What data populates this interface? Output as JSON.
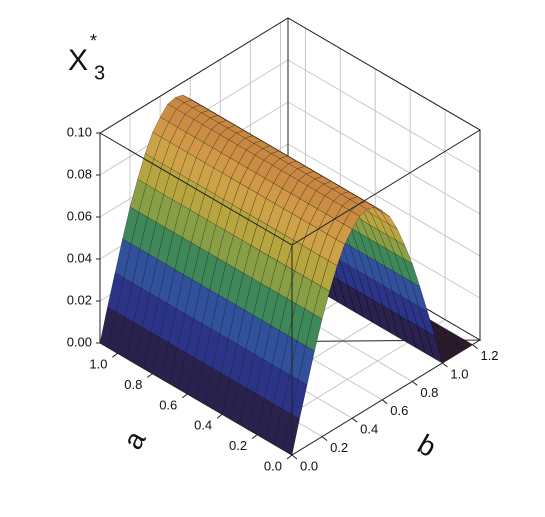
{
  "chart_data": {
    "type": "surface",
    "z_label": {
      "base": "X",
      "sup": "*",
      "sub": "3"
    },
    "a_label": "a",
    "b_label": "b",
    "alim": [
      0,
      1.1
    ],
    "blim": [
      0,
      1.25
    ],
    "zlim": [
      0,
      0.1
    ],
    "aticks": [
      {
        "value": 0,
        "label": "0.0"
      },
      {
        "value": 0.2,
        "label": "0.2"
      },
      {
        "value": 0.4,
        "label": "0.4"
      },
      {
        "value": 0.6,
        "label": "0.6"
      },
      {
        "value": 0.8,
        "label": "0.8"
      },
      {
        "value": 1,
        "label": "1.0"
      }
    ],
    "bticks": [
      {
        "value": 0,
        "label": "0.0"
      },
      {
        "value": 0.2,
        "label": "0.2"
      },
      {
        "value": 0.4,
        "label": "0.4"
      },
      {
        "value": 0.6,
        "label": "0.6"
      },
      {
        "value": 0.8,
        "label": "0.8"
      },
      {
        "value": 1,
        "label": "1.0"
      },
      {
        "value": 1.2,
        "label": "1.2"
      }
    ],
    "zticks": [
      {
        "value": 0,
        "label": "0.00"
      },
      {
        "value": 0.02,
        "label": "0.02"
      },
      {
        "value": 0.04,
        "label": "0.04"
      },
      {
        "value": 0.06,
        "label": "0.06"
      },
      {
        "value": 0.08,
        "label": "0.08"
      },
      {
        "value": 0.1,
        "label": "0.10"
      }
    ],
    "b": [
      0,
      0.05,
      0.1,
      0.15,
      0.2,
      0.25,
      0.3,
      0.35,
      0.4,
      0.45,
      0.5,
      0.55,
      0.6,
      0.65,
      0.7,
      0.75,
      0.8,
      0.85,
      0.9,
      0.95,
      1.0,
      1.05,
      1.1,
      1.15,
      1.2
    ],
    "z": [
      0,
      0.015,
      0.029,
      0.043,
      0.056,
      0.067,
      0.077,
      0.085,
      0.09,
      0.094,
      0.095,
      0.094,
      0.09,
      0.085,
      0.077,
      0.067,
      0.056,
      0.043,
      0.029,
      0.015,
      0,
      0,
      0,
      0,
      0
    ],
    "colormap": [
      "#2a1a2c",
      "#2b2c78",
      "#2f46aa",
      "#3f8a58",
      "#a9a83c",
      "#d4a24a",
      "#c27a3e"
    ],
    "grid": true
  }
}
